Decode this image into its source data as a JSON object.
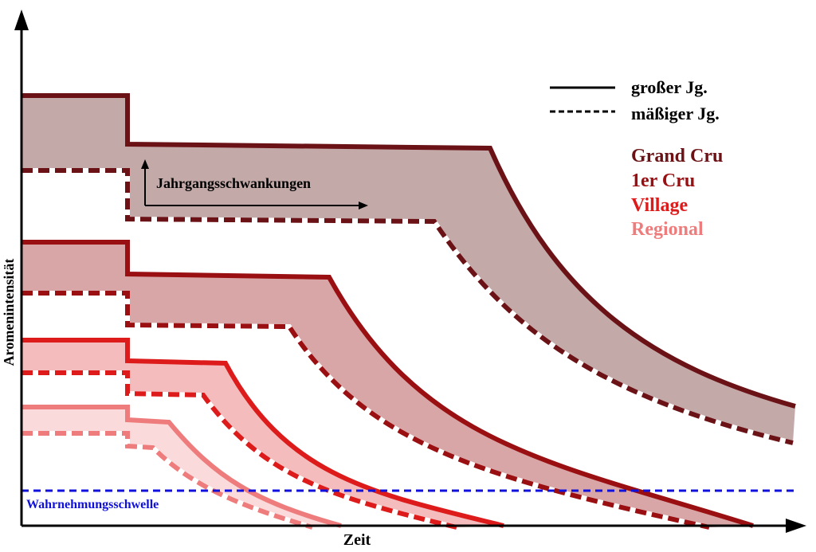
{
  "chart_data": {
    "type": "line",
    "title": "",
    "xlabel": "Zeit",
    "ylabel": "Aromenintensität",
    "annotation": "Jahrgangsschwankungen",
    "threshold": {
      "label": "Wahrnehmungsschwelle",
      "color": "#1010dd"
    },
    "line_styles": [
      {
        "name": "großer Jg.",
        "style": "solid"
      },
      {
        "name": "mäßiger Jg.",
        "style": "dashed"
      }
    ],
    "legend_position": "top-right",
    "categories": [
      {
        "name": "Grand Cru",
        "color": "#6b1216",
        "fill": "#c4a9a9"
      },
      {
        "name": "1er Cru",
        "color": "#9a0f12",
        "fill": "#d8a6a6"
      },
      {
        "name": "Village",
        "color": "#dd1b1b",
        "fill": "#f4bcbc"
      },
      {
        "name": "Regional",
        "color": "#ef7c7c",
        "fill": "#fadada"
      }
    ]
  }
}
